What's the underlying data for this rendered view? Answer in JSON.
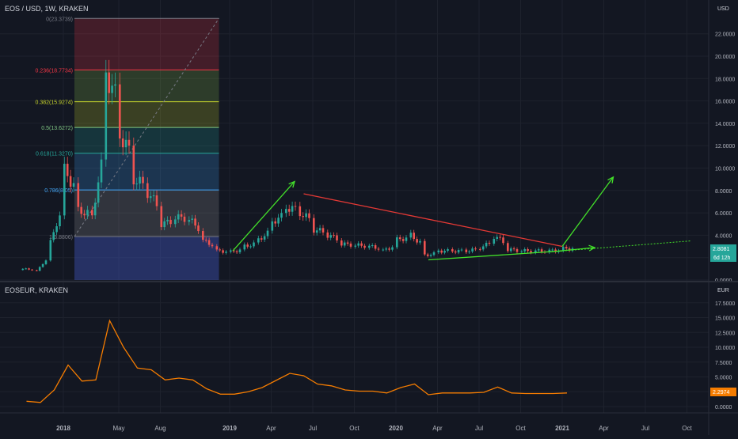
{
  "colors": {
    "background": "#131722",
    "grid": "#1e222d",
    "axis_text": "#b2b5be",
    "candle_up": "#26a69a",
    "candle_down": "#ef5350",
    "eoseur_line": "#f57c00",
    "downtrend_line": "#e53935",
    "uptrend_arrows": "#43e02a",
    "price_badge": "#26a69a",
    "eur_badge": "#f57c00"
  },
  "main_chart": {
    "title": "EOS / USD, 1W, KRAKEN",
    "currency": "USD",
    "last_price_label": "2.8081",
    "countdown_label": "6d 12h",
    "y_ticks": [
      "22.0000",
      "20.0000",
      "18.0000",
      "16.0000",
      "14.0000",
      "12.0000",
      "10.0000",
      "8.0000",
      "6.0000",
      "4.0000",
      "2.0000",
      "0.0000"
    ],
    "fib_levels": [
      {
        "label": "0(23.3739)",
        "value": 23.3739,
        "color": "#787b86"
      },
      {
        "label": "0.236(18.7734)",
        "value": 18.7734,
        "color": "#f23645"
      },
      {
        "label": "0.382(15.9274)",
        "value": 15.9274,
        "color": "#c8d52a"
      },
      {
        "label": "0.5(13.6272)",
        "value": 13.6272,
        "color": "#81c784"
      },
      {
        "label": "0.618(11.3270)",
        "value": 11.327,
        "color": "#26a69a"
      },
      {
        "label": "0.786(8.05)",
        "value": 8.05,
        "color": "#42a5f5"
      },
      {
        "label": "1(3.8806)",
        "value": 3.8806,
        "color": "#787b86"
      }
    ]
  },
  "sub_chart": {
    "title": "EOSEUR, KRAKEN",
    "currency": "EUR",
    "last_price_label": "2.2974",
    "y_ticks": [
      "17.5000",
      "15.0000",
      "12.5000",
      "10.0000",
      "7.5000",
      "5.0000",
      "2.5000",
      "0.0000"
    ]
  },
  "x_axis": [
    "2018",
    "May",
    "Aug",
    "2019",
    "Apr",
    "Jul",
    "Oct",
    "2020",
    "Apr",
    "Jul",
    "Oct",
    "2021",
    "Apr",
    "Jul",
    "Oct"
  ],
  "chart_data": [
    {
      "type": "candlestick",
      "title": "EOS / USD, 1W, KRAKEN",
      "ylabel": "USD",
      "ylim": [
        0,
        23.5
      ],
      "x_start": "2017-09",
      "x_end": "2021-11",
      "series": [
        {
          "values": [
            {
              "date": "2017-10",
              "close": 1.0
            },
            {
              "date": "2017-11",
              "close": 0.8
            },
            {
              "date": "2017-12",
              "close": 3.4
            },
            {
              "date": "2018-01",
              "close": 9.8
            },
            {
              "date": "2018-02",
              "close": 6.2
            },
            {
              "date": "2018-03",
              "close": 5.6
            },
            {
              "date": "2018-04",
              "close": 18.5
            },
            {
              "date": "2018-05",
              "close": 13.0
            },
            {
              "date": "2018-06",
              "close": 9.0
            },
            {
              "date": "2018-07",
              "close": 7.8
            },
            {
              "date": "2018-08",
              "close": 5.0
            },
            {
              "date": "2018-09",
              "close": 5.6
            },
            {
              "date": "2018-10",
              "close": 5.4
            },
            {
              "date": "2018-11",
              "close": 3.5
            },
            {
              "date": "2018-12",
              "close": 2.6
            },
            {
              "date": "2019-01",
              "close": 2.5
            },
            {
              "date": "2019-02",
              "close": 3.0
            },
            {
              "date": "2019-03",
              "close": 3.6
            },
            {
              "date": "2019-04",
              "close": 5.2
            },
            {
              "date": "2019-05",
              "close": 6.5
            },
            {
              "date": "2019-06",
              "close": 6.0
            },
            {
              "date": "2019-07",
              "close": 4.5
            },
            {
              "date": "2019-08",
              "close": 4.0
            },
            {
              "date": "2019-09",
              "close": 3.2
            },
            {
              "date": "2019-10",
              "close": 3.1
            },
            {
              "date": "2019-11",
              "close": 3.0
            },
            {
              "date": "2019-12",
              "close": 2.6
            },
            {
              "date": "2020-01",
              "close": 3.6
            },
            {
              "date": "2020-02",
              "close": 4.0
            },
            {
              "date": "2020-03",
              "close": 2.2
            },
            {
              "date": "2020-04",
              "close": 2.6
            },
            {
              "date": "2020-05",
              "close": 2.6
            },
            {
              "date": "2020-06",
              "close": 2.6
            },
            {
              "date": "2020-07",
              "close": 2.9
            },
            {
              "date": "2020-08",
              "close": 3.9
            },
            {
              "date": "2020-09",
              "close": 2.7
            },
            {
              "date": "2020-10",
              "close": 2.6
            },
            {
              "date": "2020-11",
              "close": 2.6
            },
            {
              "date": "2020-12",
              "close": 2.6
            },
            {
              "date": "2021-01",
              "close": 2.8
            }
          ]
        }
      ]
    },
    {
      "type": "line",
      "title": "EOSEUR, KRAKEN",
      "ylabel": "EUR",
      "ylim": [
        -0.5,
        19.0
      ],
      "series": [
        {
          "values": [
            {
              "date": "2017-10",
              "value": 0.9
            },
            {
              "date": "2017-11",
              "value": 0.7
            },
            {
              "date": "2017-12",
              "value": 2.8
            },
            {
              "date": "2018-01",
              "value": 7.0
            },
            {
              "date": "2018-02",
              "value": 4.3
            },
            {
              "date": "2018-03",
              "value": 4.5
            },
            {
              "date": "2018-04",
              "value": 14.5
            },
            {
              "date": "2018-05",
              "value": 10.0
            },
            {
              "date": "2018-06",
              "value": 6.5
            },
            {
              "date": "2018-07",
              "value": 6.2
            },
            {
              "date": "2018-08",
              "value": 4.5
            },
            {
              "date": "2018-09",
              "value": 4.8
            },
            {
              "date": "2018-10",
              "value": 4.5
            },
            {
              "date": "2018-11",
              "value": 3.0
            },
            {
              "date": "2018-12",
              "value": 2.1
            },
            {
              "date": "2019-01",
              "value": 2.1
            },
            {
              "date": "2019-02",
              "value": 2.5
            },
            {
              "date": "2019-03",
              "value": 3.2
            },
            {
              "date": "2019-04",
              "value": 4.4
            },
            {
              "date": "2019-05",
              "value": 5.6
            },
            {
              "date": "2019-06",
              "value": 5.2
            },
            {
              "date": "2019-07",
              "value": 3.8
            },
            {
              "date": "2019-08",
              "value": 3.5
            },
            {
              "date": "2019-09",
              "value": 2.8
            },
            {
              "date": "2019-10",
              "value": 2.6
            },
            {
              "date": "2019-11",
              "value": 2.6
            },
            {
              "date": "2019-12",
              "value": 2.3
            },
            {
              "date": "2020-01",
              "value": 3.2
            },
            {
              "date": "2020-02",
              "value": 3.8
            },
            {
              "date": "2020-03",
              "value": 2.0
            },
            {
              "date": "2020-04",
              "value": 2.3
            },
            {
              "date": "2020-05",
              "value": 2.3
            },
            {
              "date": "2020-06",
              "value": 2.3
            },
            {
              "date": "2020-07",
              "value": 2.4
            },
            {
              "date": "2020-08",
              "value": 3.3
            },
            {
              "date": "2020-09",
              "value": 2.3
            },
            {
              "date": "2020-10",
              "value": 2.2
            },
            {
              "date": "2020-11",
              "value": 2.2
            },
            {
              "date": "2020-12",
              "value": 2.2
            },
            {
              "date": "2021-01",
              "value": 2.2974
            }
          ]
        }
      ]
    }
  ]
}
